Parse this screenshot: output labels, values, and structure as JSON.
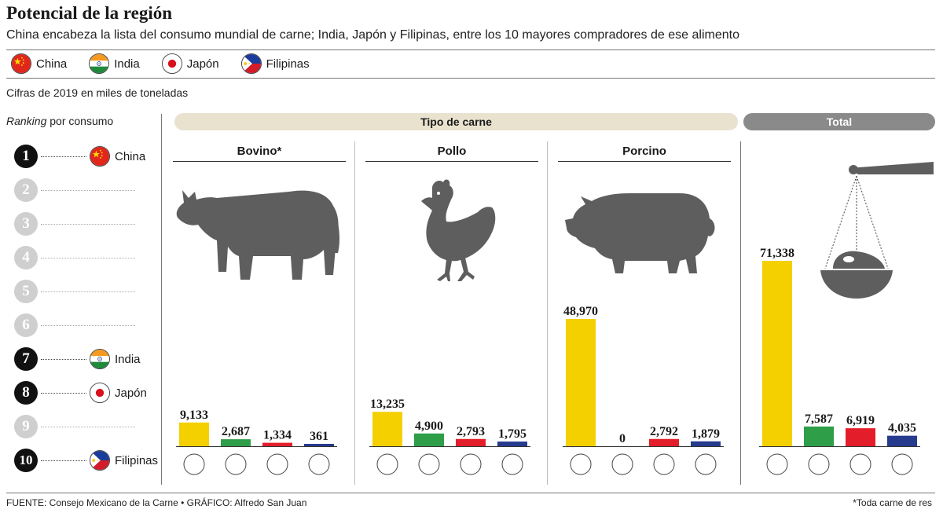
{
  "header": {
    "title": "Potencial de la región",
    "subtitle": "China encabeza la lista del consumo mundial de carne; India, Japón y Filipinas, entre los 10 mayores compradores de ese alimento"
  },
  "legend": [
    {
      "key": "china",
      "label": "China",
      "color": "#F5D000"
    },
    {
      "key": "india",
      "label": "India",
      "color": "#2E9E48"
    },
    {
      "key": "japon",
      "label": "Japón",
      "color": "#E31E2A"
    },
    {
      "key": "filipinas",
      "label": "Filipinas",
      "color": "#263A8E"
    }
  ],
  "note": "Cifras de 2019 en miles de toneladas",
  "ranking": {
    "title_em": "Ranking",
    "title_rest": " por consumo",
    "items": [
      {
        "n": "1",
        "country": "china",
        "label": "China"
      },
      {
        "n": "2",
        "country": null,
        "label": ""
      },
      {
        "n": "3",
        "country": null,
        "label": ""
      },
      {
        "n": "4",
        "country": null,
        "label": ""
      },
      {
        "n": "5",
        "country": null,
        "label": ""
      },
      {
        "n": "6",
        "country": null,
        "label": ""
      },
      {
        "n": "7",
        "country": "india",
        "label": "India"
      },
      {
        "n": "8",
        "country": "japon",
        "label": "Japón"
      },
      {
        "n": "9",
        "country": null,
        "label": ""
      },
      {
        "n": "10",
        "country": "filipinas",
        "label": "Filipinas"
      }
    ]
  },
  "sections": {
    "tipo": "Tipo de carne",
    "total": "Total"
  },
  "chart_data": {
    "type": "bar",
    "categories": [
      "China",
      "India",
      "Japón",
      "Filipinas"
    ],
    "panels": [
      {
        "title": "Bovino*",
        "values": [
          9133,
          2687,
          1334,
          361
        ],
        "labels": [
          "9,133",
          "2,687",
          "1,334",
          "361"
        ]
      },
      {
        "title": "Pollo",
        "values": [
          13235,
          4900,
          2793,
          1795
        ],
        "labels": [
          "13,235",
          "4,900",
          "2,793",
          "1,795"
        ]
      },
      {
        "title": "Porcino",
        "values": [
          48970,
          0,
          2792,
          1879
        ],
        "labels": [
          "48,970",
          "0",
          "2,792",
          "1,879"
        ]
      },
      {
        "title": "",
        "values": [
          71338,
          7587,
          6919,
          4035
        ],
        "labels": [
          "71,338",
          "7,587",
          "6,919",
          "4,035"
        ]
      }
    ],
    "colors": [
      "#F5D000",
      "#2E9E48",
      "#E31E2A",
      "#263A8E"
    ],
    "unit": "miles de toneladas"
  },
  "footer": {
    "source": "FUENTE: Consejo Mexicano de la Carne  • GRÁFICO: Alfredo San Juan",
    "footnote": "*Toda carne de res"
  },
  "palette": {
    "section_pill": "#E9E2CF",
    "total_pill": "#8A8A8A",
    "icon": "#5E5E5E",
    "rank_on": "#111111",
    "rank_off": "#CFCFCF"
  },
  "icons": [
    "cow-icon",
    "chicken-icon",
    "pig-icon",
    "scale-icon",
    "china-flag-icon",
    "india-flag-icon",
    "japan-flag-icon",
    "philippines-flag-icon"
  ]
}
